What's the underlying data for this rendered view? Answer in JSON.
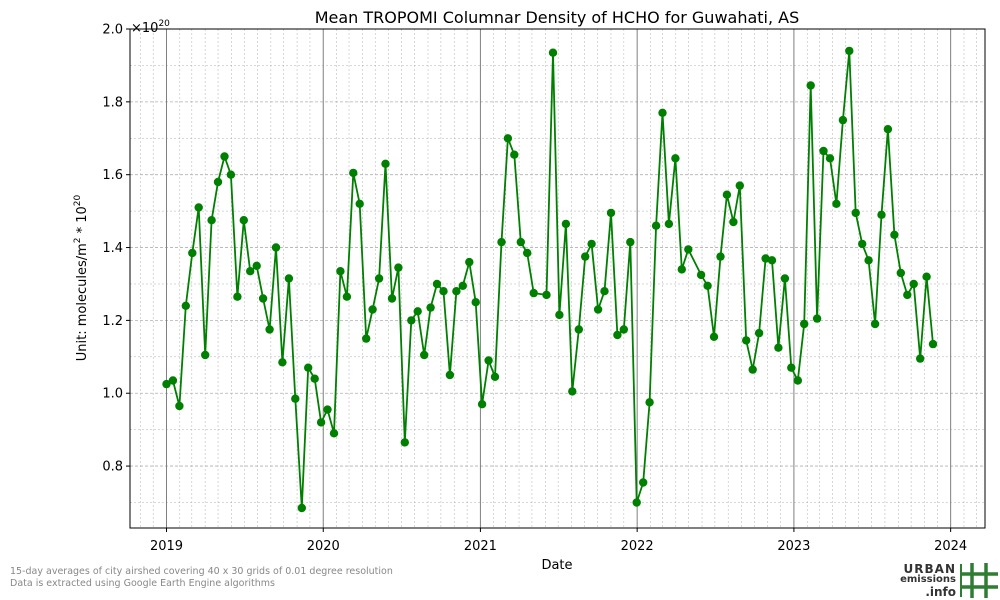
{
  "chart_data": {
    "type": "line",
    "title": "Mean TROPOMI Columnar Density of HCHO for Guwahati, AS",
    "xlabel": "Date",
    "ylabel_main": "Unit: molecules/m",
    "ylabel_sup1": "2",
    "ylabel_mid": " * 10",
    "ylabel_sup2": "20",
    "offset_base": "×10",
    "offset_exp": "20",
    "xlim": [
      "2018-10-08",
      "2024-03-21"
    ],
    "ylim": [
      0.63,
      2.0
    ],
    "yticks": [
      0.8,
      1.0,
      1.2,
      1.4,
      1.6,
      1.8,
      2.0
    ],
    "ytick_labels": [
      "0.8",
      "1.0",
      "1.2",
      "1.4",
      "1.6",
      "1.8",
      "2.0"
    ],
    "xticks": [
      "2019-01-01",
      "2020-01-01",
      "2021-01-01",
      "2022-01-01",
      "2023-01-01",
      "2024-01-01"
    ],
    "xtick_labels": [
      "2019",
      "2020",
      "2021",
      "2022",
      "2023",
      "2024"
    ],
    "grid": true,
    "color": "#008000",
    "series": [
      {
        "points": [
          [
            "2019-01-01",
            1.025
          ],
          [
            "2019-01-16",
            1.035
          ],
          [
            "2019-01-31",
            0.965
          ],
          [
            "2019-02-15",
            1.24
          ],
          [
            "2019-03-02",
            1.385
          ],
          [
            "2019-03-17",
            1.51
          ],
          [
            "2019-04-01",
            1.105
          ],
          [
            "2019-04-16",
            1.475
          ],
          [
            "2019-05-01",
            1.58
          ],
          [
            "2019-05-16",
            1.65
          ],
          [
            "2019-05-31",
            1.6
          ],
          [
            "2019-06-15",
            1.265
          ],
          [
            "2019-06-30",
            1.475
          ],
          [
            "2019-07-15",
            1.335
          ],
          [
            "2019-07-30",
            1.35
          ],
          [
            "2019-08-14",
            1.26
          ],
          [
            "2019-08-29",
            1.175
          ],
          [
            "2019-09-13",
            1.4
          ],
          [
            "2019-09-28",
            1.085
          ],
          [
            "2019-10-13",
            1.315
          ],
          [
            "2019-10-28",
            0.985
          ],
          [
            "2019-11-12",
            0.685
          ],
          [
            "2019-11-27",
            1.07
          ],
          [
            "2019-12-12",
            1.04
          ],
          [
            "2019-12-27",
            0.92
          ],
          [
            "2020-01-11",
            0.955
          ],
          [
            "2020-01-26",
            0.89
          ],
          [
            "2020-02-10",
            1.335
          ],
          [
            "2020-02-25",
            1.265
          ],
          [
            "2020-03-11",
            1.605
          ],
          [
            "2020-03-26",
            1.52
          ],
          [
            "2020-04-10",
            1.15
          ],
          [
            "2020-04-25",
            1.23
          ],
          [
            "2020-05-10",
            1.315
          ],
          [
            "2020-05-25",
            1.63
          ],
          [
            "2020-06-09",
            1.26
          ],
          [
            "2020-06-24",
            1.345
          ],
          [
            "2020-07-09",
            0.865
          ],
          [
            "2020-07-24",
            1.2
          ],
          [
            "2020-08-08",
            1.225
          ],
          [
            "2020-08-23",
            1.105
          ],
          [
            "2020-09-07",
            1.235
          ],
          [
            "2020-09-22",
            1.3
          ],
          [
            "2020-10-07",
            1.28
          ],
          [
            "2020-10-22",
            1.05
          ],
          [
            "2020-11-06",
            1.28
          ],
          [
            "2020-11-21",
            1.295
          ],
          [
            "2020-12-06",
            1.36
          ],
          [
            "2020-12-21",
            1.25
          ],
          [
            "2021-01-05",
            0.97
          ],
          [
            "2021-01-20",
            1.09
          ],
          [
            "2021-02-04",
            1.045
          ],
          [
            "2021-02-19",
            1.415
          ],
          [
            "2021-03-06",
            1.7
          ],
          [
            "2021-03-21",
            1.655
          ],
          [
            "2021-04-05",
            1.415
          ],
          [
            "2021-04-20",
            1.385
          ],
          [
            "2021-05-05",
            1.275
          ],
          [
            "2021-06-04",
            1.27
          ],
          [
            "2021-06-19",
            1.935
          ],
          [
            "2021-07-04",
            1.215
          ],
          [
            "2021-07-19",
            1.465
          ],
          [
            "2021-08-03",
            1.005
          ],
          [
            "2021-08-18",
            1.175
          ],
          [
            "2021-09-02",
            1.375
          ],
          [
            "2021-09-17",
            1.41
          ],
          [
            "2021-10-02",
            1.23
          ],
          [
            "2021-10-17",
            1.28
          ],
          [
            "2021-11-01",
            1.495
          ],
          [
            "2021-11-16",
            1.16
          ],
          [
            "2021-12-01",
            1.175
          ],
          [
            "2021-12-16",
            1.415
          ],
          [
            "2021-12-31",
            0.7
          ],
          [
            "2022-01-15",
            0.755
          ],
          [
            "2022-01-30",
            0.975
          ],
          [
            "2022-02-14",
            1.46
          ],
          [
            "2022-03-01",
            1.77
          ],
          [
            "2022-03-16",
            1.465
          ],
          [
            "2022-03-31",
            1.645
          ],
          [
            "2022-04-15",
            1.34
          ],
          [
            "2022-04-30",
            1.395
          ],
          [
            "2022-05-30",
            1.325
          ],
          [
            "2022-06-14",
            1.295
          ],
          [
            "2022-06-29",
            1.155
          ],
          [
            "2022-07-14",
            1.375
          ],
          [
            "2022-07-29",
            1.545
          ],
          [
            "2022-08-13",
            1.47
          ],
          [
            "2022-08-28",
            1.57
          ],
          [
            "2022-09-12",
            1.145
          ],
          [
            "2022-09-27",
            1.065
          ],
          [
            "2022-10-12",
            1.165
          ],
          [
            "2022-10-27",
            1.37
          ],
          [
            "2022-11-11",
            1.365
          ],
          [
            "2022-11-26",
            1.125
          ],
          [
            "2022-12-11",
            1.315
          ],
          [
            "2022-12-26",
            1.07
          ],
          [
            "2023-01-10",
            1.035
          ],
          [
            "2023-01-25",
            1.19
          ],
          [
            "2023-02-09",
            1.845
          ],
          [
            "2023-02-24",
            1.205
          ],
          [
            "2023-03-11",
            1.665
          ],
          [
            "2023-03-26",
            1.645
          ],
          [
            "2023-04-10",
            1.52
          ],
          [
            "2023-04-25",
            1.75
          ],
          [
            "2023-05-10",
            1.94
          ],
          [
            "2023-05-25",
            1.495
          ],
          [
            "2023-06-09",
            1.41
          ],
          [
            "2023-06-24",
            1.365
          ],
          [
            "2023-07-09",
            1.19
          ],
          [
            "2023-07-24",
            1.49
          ],
          [
            "2023-08-08",
            1.725
          ],
          [
            "2023-08-23",
            1.435
          ],
          [
            "2023-09-07",
            1.33
          ],
          [
            "2023-09-22",
            1.27
          ],
          [
            "2023-10-07",
            1.3
          ],
          [
            "2023-10-22",
            1.095
          ],
          [
            "2023-11-06",
            1.32
          ],
          [
            "2023-11-21",
            1.135
          ]
        ]
      }
    ]
  },
  "footnote": {
    "line1": "15-day averages of city airshed covering 40 x 30 grids of 0.01 degree resolution",
    "line2": "Data is extracted using Google Earth Engine algorithms"
  },
  "logo": {
    "line1": "URBAN",
    "line2": "emissions",
    "line3": ".info",
    "color": "#2e7d32"
  }
}
